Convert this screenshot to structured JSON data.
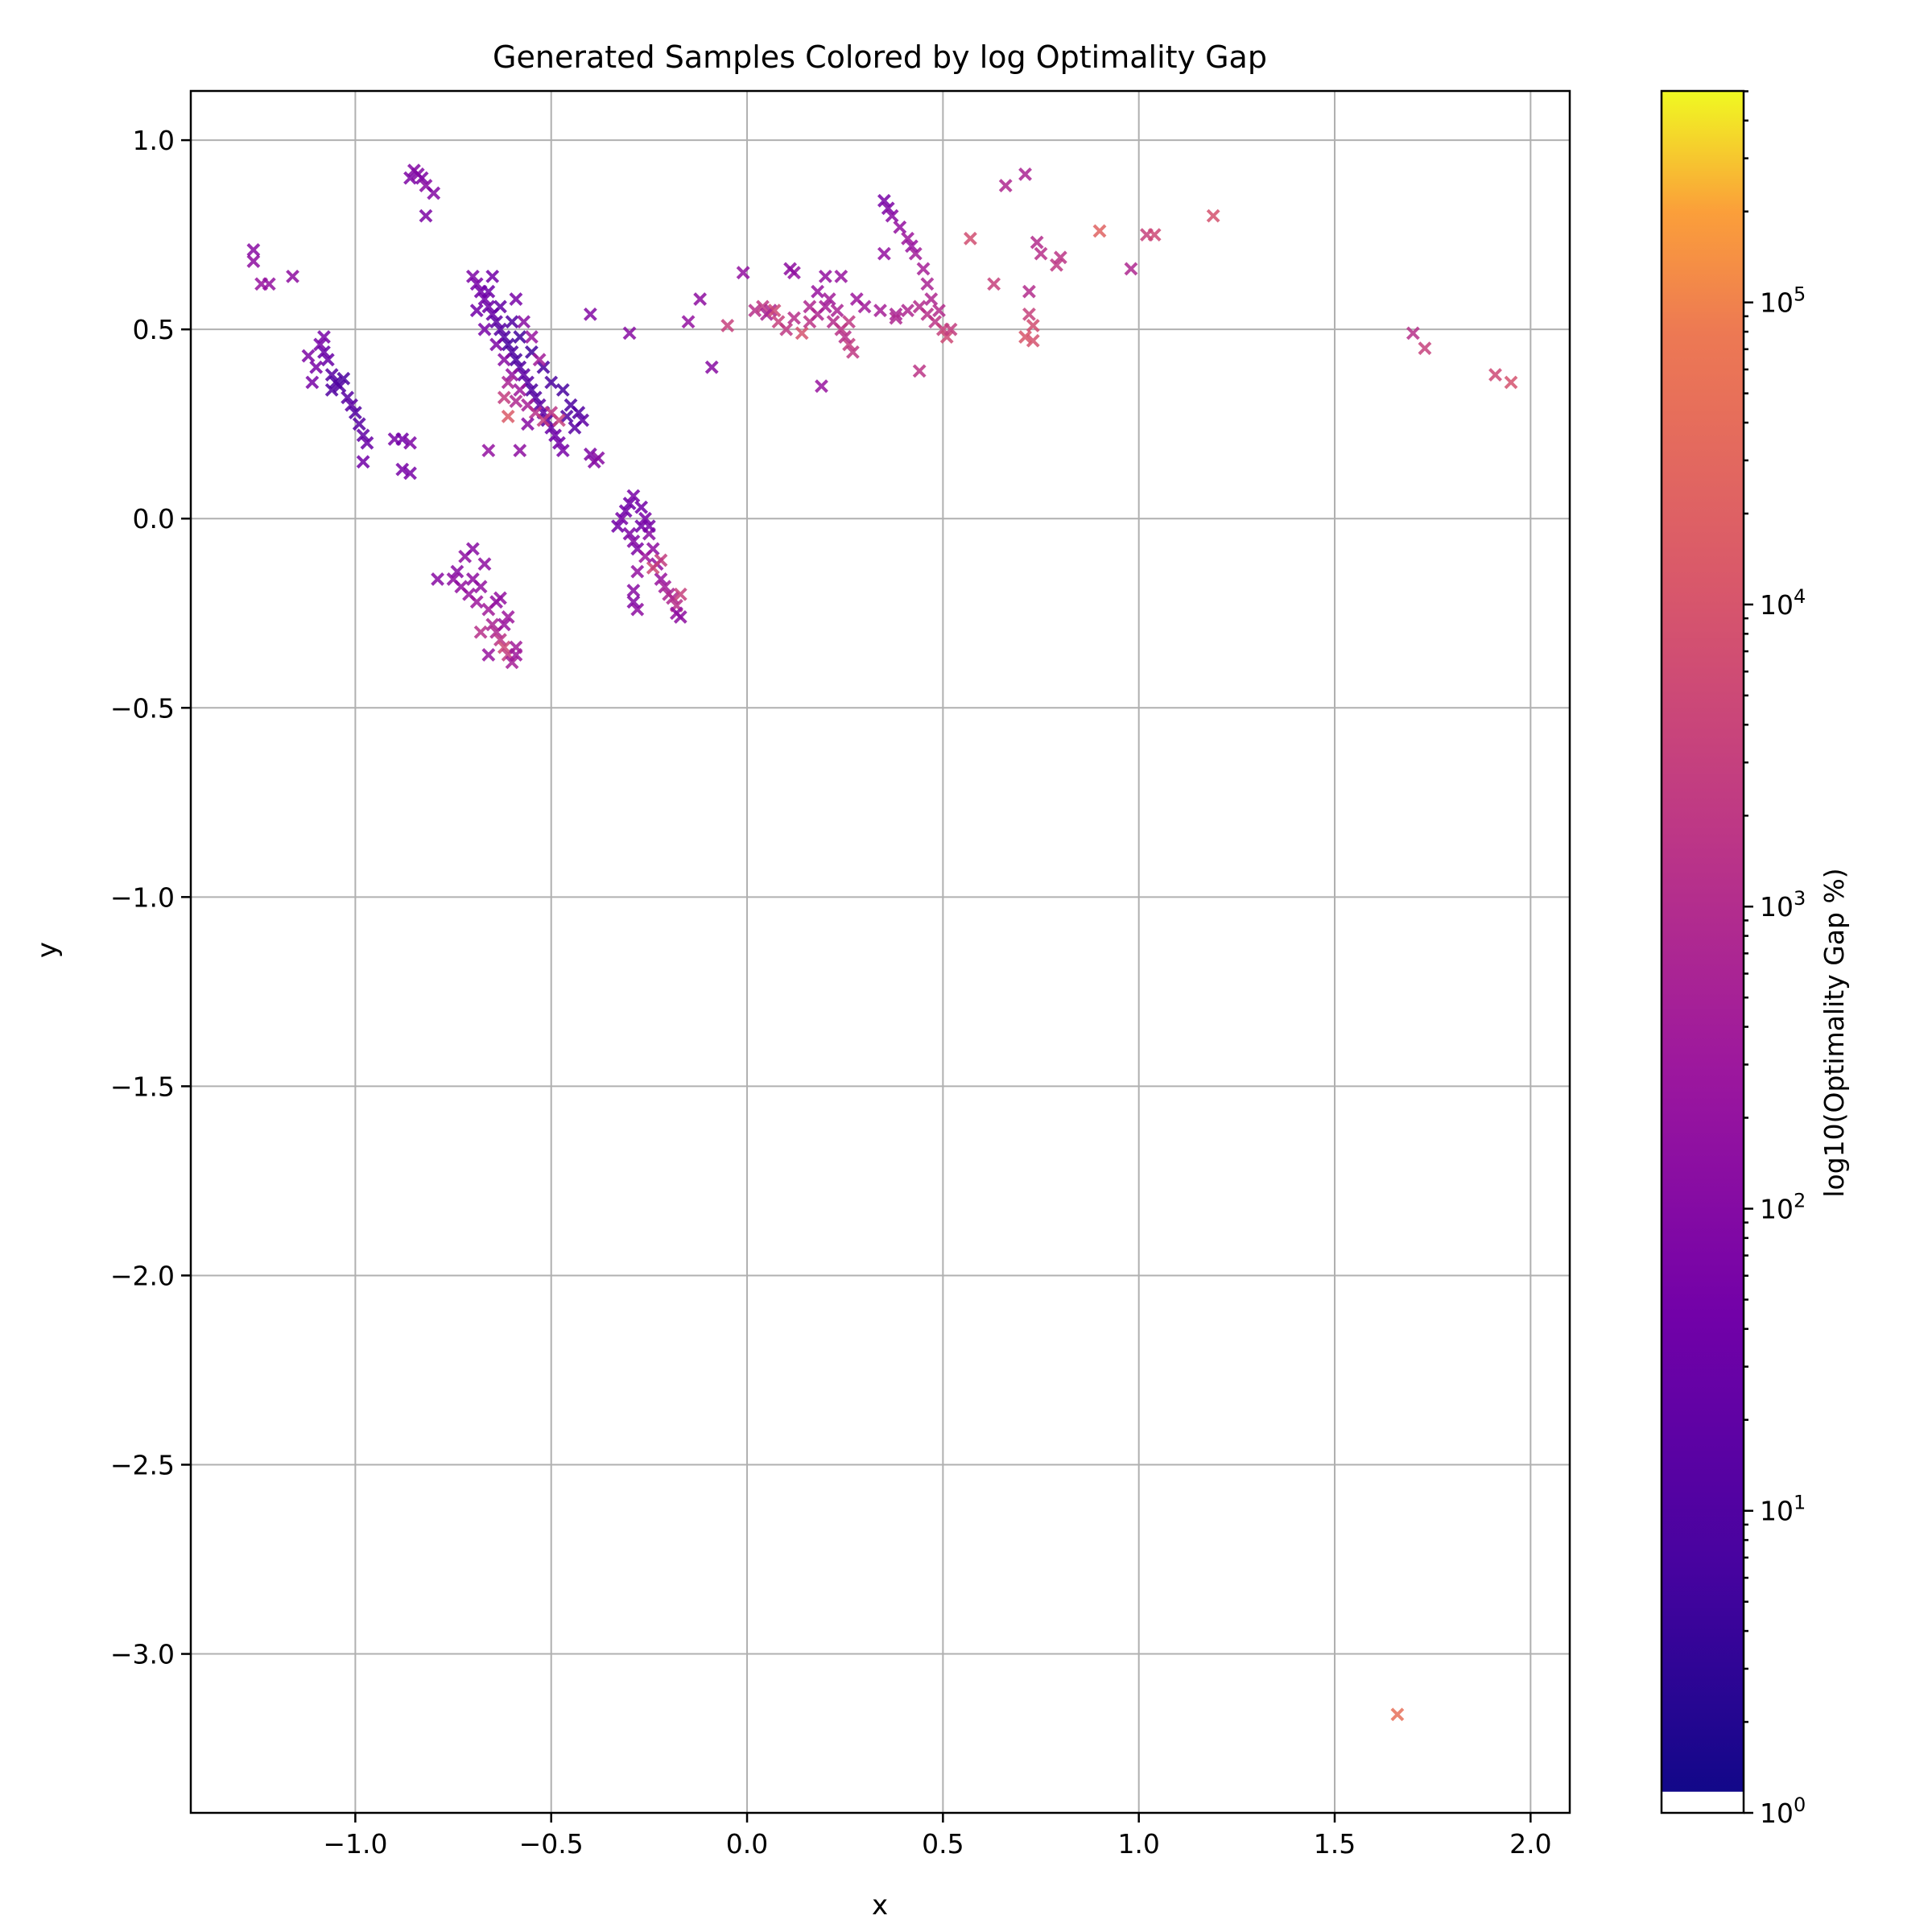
{
  "chart_data": {
    "type": "scatter",
    "title": "Generated Samples Colored by log Optimality Gap",
    "xlabel": "x",
    "ylabel": "y",
    "xlim": [
      -1.42,
      2.1
    ],
    "ylim": [
      -3.42,
      1.13
    ],
    "x_ticks": [
      -1.0,
      -0.5,
      0.0,
      0.5,
      1.0,
      1.5,
      2.0
    ],
    "y_ticks": [
      1.0,
      0.5,
      0.0,
      -0.5,
      -1.0,
      -1.5,
      -2.0,
      -2.5,
      -3.0
    ],
    "x_tick_labels": [
      "−1.0",
      "−0.5",
      "0.0",
      "0.5",
      "1.0",
      "1.5",
      "2.0"
    ],
    "y_tick_labels": [
      "1.0",
      "0.5",
      "0.0",
      "−0.5",
      "−1.0",
      "−1.5",
      "−2.0",
      "−2.5",
      "−3.0"
    ],
    "grid": true,
    "marker": "x",
    "colormap": "plasma",
    "colorbar": {
      "label": "log10(Optimality Gap %)",
      "scale": "log",
      "range_log10": [
        0,
        5.7
      ],
      "ticks": [
        {
          "exp": 0,
          "label": "10",
          "sup": "0"
        },
        {
          "exp": 1,
          "label": "10",
          "sup": "1"
        },
        {
          "exp": 2,
          "label": "10",
          "sup": "2"
        },
        {
          "exp": 3,
          "label": "10",
          "sup": "3"
        },
        {
          "exp": 4,
          "label": "10",
          "sup": "4"
        },
        {
          "exp": 5,
          "label": "10",
          "sup": "5"
        }
      ]
    },
    "points": [
      [
        -0.85,
        0.92,
        2.1
      ],
      [
        -0.83,
        0.9,
        2.0
      ],
      [
        -0.82,
        0.88,
        2.2
      ],
      [
        -0.8,
        0.86,
        2.1
      ],
      [
        -0.86,
        0.9,
        2.0
      ],
      [
        -0.82,
        0.8,
        2.0
      ],
      [
        -0.84,
        0.91,
        2.1
      ],
      [
        -1.26,
        0.71,
        2.2
      ],
      [
        -1.26,
        0.68,
        2.3
      ],
      [
        -1.24,
        0.62,
        2.5
      ],
      [
        -1.22,
        0.62,
        2.4
      ],
      [
        -1.16,
        0.64,
        2.3
      ],
      [
        -1.12,
        0.43,
        2.0
      ],
      [
        -1.1,
        0.4,
        1.9
      ],
      [
        -1.09,
        0.46,
        1.9
      ],
      [
        -1.08,
        0.44,
        1.6
      ],
      [
        -1.07,
        0.42,
        1.6
      ],
      [
        -1.06,
        0.38,
        1.3
      ],
      [
        -1.05,
        0.36,
        1.1
      ],
      [
        -1.04,
        0.35,
        1.2
      ],
      [
        -1.03,
        0.37,
        1.1
      ],
      [
        -1.02,
        0.32,
        1.3
      ],
      [
        -1.01,
        0.3,
        1.4
      ],
      [
        -1.0,
        0.28,
        1.2
      ],
      [
        -0.99,
        0.25,
        1.3
      ],
      [
        -0.98,
        0.22,
        1.5
      ],
      [
        -0.97,
        0.2,
        1.6
      ],
      [
        -0.98,
        0.15,
        1.8
      ],
      [
        -1.11,
        0.36,
        1.9
      ],
      [
        -1.08,
        0.48,
        1.9
      ],
      [
        -1.06,
        0.34,
        1.2
      ],
      [
        -0.9,
        0.21,
        1.9
      ],
      [
        -0.88,
        0.21,
        1.8
      ],
      [
        -0.86,
        0.2,
        2.0
      ],
      [
        -0.88,
        0.13,
        1.9
      ],
      [
        -0.86,
        0.12,
        1.9
      ],
      [
        -0.7,
        0.64,
        2.0
      ],
      [
        -0.69,
        0.62,
        1.9
      ],
      [
        -0.68,
        0.6,
        1.8
      ],
      [
        -0.67,
        0.58,
        1.8
      ],
      [
        -0.66,
        0.56,
        1.7
      ],
      [
        -0.65,
        0.54,
        1.6
      ],
      [
        -0.64,
        0.52,
        1.4
      ],
      [
        -0.63,
        0.5,
        1.3
      ],
      [
        -0.62,
        0.48,
        1.2
      ],
      [
        -0.61,
        0.46,
        1.0
      ],
      [
        -0.6,
        0.44,
        1.1
      ],
      [
        -0.59,
        0.42,
        1.0
      ],
      [
        -0.58,
        0.4,
        1.2
      ],
      [
        -0.57,
        0.38,
        1.4
      ],
      [
        -0.56,
        0.36,
        1.3
      ],
      [
        -0.55,
        0.34,
        1.1
      ],
      [
        -0.54,
        0.32,
        1.2
      ],
      [
        -0.53,
        0.3,
        1.4
      ],
      [
        -0.52,
        0.28,
        1.5
      ],
      [
        -0.51,
        0.26,
        1.3
      ],
      [
        -0.5,
        0.24,
        1.6
      ],
      [
        -0.49,
        0.22,
        1.7
      ],
      [
        -0.48,
        0.2,
        1.8
      ],
      [
        -0.47,
        0.18,
        1.9
      ],
      [
        -0.46,
        0.27,
        1.2
      ],
      [
        -0.45,
        0.3,
        1.1
      ],
      [
        -0.47,
        0.34,
        1.0
      ],
      [
        -0.5,
        0.36,
        1.1
      ],
      [
        -0.52,
        0.4,
        1.0
      ],
      [
        -0.55,
        0.44,
        0.9
      ],
      [
        -0.58,
        0.48,
        0.9
      ],
      [
        -0.6,
        0.52,
        1.2
      ],
      [
        -0.63,
        0.56,
        1.5
      ],
      [
        -0.66,
        0.6,
        1.7
      ],
      [
        -0.69,
        0.55,
        1.8
      ],
      [
        -0.67,
        0.5,
        1.9
      ],
      [
        -0.64,
        0.46,
        2.0
      ],
      [
        -0.62,
        0.42,
        2.2
      ],
      [
        -0.6,
        0.38,
        2.4
      ],
      [
        -0.58,
        0.34,
        2.6
      ],
      [
        -0.56,
        0.3,
        2.8
      ],
      [
        -0.54,
        0.28,
        3.2
      ],
      [
        -0.52,
        0.26,
        3.5
      ],
      [
        -0.5,
        0.28,
        3.3
      ],
      [
        -0.48,
        0.26,
        3.6
      ],
      [
        -0.61,
        0.27,
        4.2
      ],
      [
        -0.62,
        0.32,
        3.5
      ],
      [
        -0.66,
        0.18,
        2.4
      ],
      [
        -0.58,
        0.18,
        2.3
      ],
      [
        -0.56,
        0.25,
        2.2
      ],
      [
        -0.44,
        0.24,
        1.3
      ],
      [
        -0.43,
        0.28,
        1.2
      ],
      [
        -0.42,
        0.26,
        1.4
      ],
      [
        -0.4,
        0.17,
        2.0
      ],
      [
        -0.39,
        0.15,
        2.1
      ],
      [
        -0.38,
        0.16,
        2.2
      ],
      [
        -0.53,
        0.42,
        2.7
      ],
      [
        -0.55,
        0.48,
        2.5
      ],
      [
        -0.57,
        0.52,
        2.2
      ],
      [
        -0.59,
        0.58,
        1.9
      ],
      [
        -0.65,
        0.64,
        1.8
      ],
      [
        -0.61,
        0.36,
        2.9
      ],
      [
        -0.59,
        0.31,
        3.0
      ],
      [
        -0.4,
        0.54,
        2.1
      ],
      [
        -0.3,
        0.49,
        2.2
      ],
      [
        -0.15,
        0.52,
        2.4
      ],
      [
        -0.12,
        0.58,
        2.3
      ],
      [
        -0.09,
        0.4,
        2.2
      ],
      [
        -0.05,
        0.51,
        3.6
      ],
      [
        -0.01,
        0.65,
        2.4
      ],
      [
        0.19,
        0.35,
        2.5
      ],
      [
        -0.33,
        -0.02,
        1.8
      ],
      [
        -0.32,
        0.0,
        1.9
      ],
      [
        -0.31,
        0.02,
        1.8
      ],
      [
        -0.3,
        0.04,
        1.7
      ],
      [
        -0.29,
        0.06,
        1.9
      ],
      [
        -0.3,
        -0.04,
        2.0
      ],
      [
        -0.29,
        -0.06,
        2.1
      ],
      [
        -0.28,
        -0.08,
        2.0
      ],
      [
        -0.27,
        -0.02,
        1.8
      ],
      [
        -0.26,
        0.0,
        1.9
      ],
      [
        -0.25,
        -0.04,
        2.2
      ],
      [
        -0.24,
        -0.08,
        2.3
      ],
      [
        -0.23,
        -0.12,
        2.4
      ],
      [
        -0.22,
        -0.16,
        2.5
      ],
      [
        -0.21,
        -0.18,
        2.7
      ],
      [
        -0.2,
        -0.2,
        2.9
      ],
      [
        -0.19,
        -0.21,
        3.0
      ],
      [
        -0.18,
        -0.23,
        3.2
      ],
      [
        -0.17,
        -0.2,
        3.6
      ],
      [
        -0.18,
        -0.25,
        2.4
      ],
      [
        -0.17,
        -0.26,
        2.3
      ],
      [
        -0.24,
        -0.13,
        3.8
      ],
      [
        -0.22,
        -0.11,
        3.5
      ],
      [
        -0.26,
        -0.1,
        2.6
      ],
      [
        -0.28,
        -0.14,
        2.4
      ],
      [
        -0.29,
        -0.19,
        2.2
      ],
      [
        -0.28,
        -0.24,
        2.3
      ],
      [
        -0.29,
        -0.22,
        2.1
      ],
      [
        -0.25,
        -0.02,
        1.9
      ],
      [
        -0.27,
        0.03,
        1.8
      ],
      [
        -0.74,
        -0.14,
        2.2
      ],
      [
        -0.72,
        -0.1,
        2.3
      ],
      [
        -0.7,
        -0.08,
        2.2
      ],
      [
        -0.73,
        -0.18,
        2.4
      ],
      [
        -0.75,
        -0.16,
        2.3
      ],
      [
        -0.71,
        -0.2,
        2.5
      ],
      [
        -0.69,
        -0.22,
        2.6
      ],
      [
        -0.68,
        -0.18,
        2.4
      ],
      [
        -0.67,
        -0.12,
        2.3
      ],
      [
        -0.66,
        -0.24,
        2.7
      ],
      [
        -0.65,
        -0.28,
        2.9
      ],
      [
        -0.64,
        -0.3,
        3.0
      ],
      [
        -0.63,
        -0.32,
        3.3
      ],
      [
        -0.62,
        -0.34,
        3.8
      ],
      [
        -0.61,
        -0.36,
        3.5
      ],
      [
        -0.6,
        -0.38,
        2.8
      ],
      [
        -0.59,
        -0.36,
        2.6
      ],
      [
        -0.62,
        -0.28,
        2.5
      ],
      [
        -0.64,
        -0.22,
        2.4
      ],
      [
        -0.7,
        -0.16,
        2.3
      ],
      [
        -0.66,
        -0.36,
        2.5
      ],
      [
        -0.63,
        -0.21,
        2.4
      ],
      [
        -0.79,
        -0.16,
        2.2
      ],
      [
        -0.68,
        -0.3,
        3.2
      ],
      [
        -0.61,
        -0.26,
        2.6
      ],
      [
        -0.59,
        -0.34,
        2.7
      ],
      [
        0.02,
        0.55,
        3.2
      ],
      [
        0.04,
        0.56,
        3.4
      ],
      [
        0.06,
        0.55,
        3.0
      ],
      [
        0.08,
        0.52,
        3.6
      ],
      [
        0.1,
        0.5,
        3.4
      ],
      [
        0.12,
        0.53,
        3.2
      ],
      [
        0.14,
        0.49,
        4.0
      ],
      [
        0.16,
        0.52,
        3.3
      ],
      [
        0.18,
        0.54,
        3.0
      ],
      [
        0.2,
        0.56,
        2.8
      ],
      [
        0.22,
        0.52,
        3.1
      ],
      [
        0.24,
        0.5,
        3.3
      ],
      [
        0.26,
        0.46,
        3.5
      ],
      [
        0.27,
        0.44,
        3.4
      ],
      [
        0.25,
        0.48,
        3.2
      ],
      [
        0.23,
        0.55,
        2.9
      ],
      [
        0.21,
        0.58,
        2.7
      ],
      [
        0.18,
        0.6,
        2.5
      ],
      [
        0.12,
        0.65,
        2.4
      ],
      [
        0.11,
        0.66,
        2.3
      ],
      [
        0.2,
        0.64,
        2.4
      ],
      [
        0.24,
        0.64,
        2.5
      ],
      [
        0.28,
        0.58,
        2.6
      ],
      [
        0.3,
        0.56,
        2.7
      ],
      [
        0.34,
        0.55,
        2.8
      ],
      [
        0.38,
        0.54,
        2.9
      ],
      [
        0.41,
        0.55,
        3.0
      ],
      [
        0.44,
        0.56,
        3.1
      ],
      [
        0.46,
        0.54,
        3.2
      ],
      [
        0.48,
        0.52,
        3.3
      ],
      [
        0.5,
        0.5,
        3.6
      ],
      [
        0.51,
        0.48,
        3.8
      ],
      [
        0.52,
        0.5,
        3.5
      ],
      [
        0.05,
        0.54,
        2.9
      ],
      [
        0.07,
        0.55,
        3.8
      ],
      [
        0.16,
        0.56,
        3.0
      ],
      [
        0.26,
        0.52,
        3.4
      ],
      [
        0.35,
        0.84,
        1.9
      ],
      [
        0.36,
        0.82,
        2.0
      ],
      [
        0.37,
        0.8,
        2.2
      ],
      [
        0.39,
        0.77,
        2.4
      ],
      [
        0.41,
        0.74,
        2.6
      ],
      [
        0.43,
        0.7,
        2.7
      ],
      [
        0.45,
        0.66,
        2.8
      ],
      [
        0.46,
        0.62,
        2.9
      ],
      [
        0.47,
        0.58,
        3.0
      ],
      [
        0.49,
        0.55,
        3.1
      ],
      [
        0.44,
        0.39,
        3.3
      ],
      [
        0.42,
        0.72,
        2.5
      ],
      [
        0.35,
        0.7,
        2.4
      ],
      [
        0.38,
        0.53,
        3.0
      ],
      [
        0.57,
        0.74,
        3.9
      ],
      [
        0.63,
        0.62,
        3.6
      ],
      [
        0.66,
        0.88,
        3.0
      ],
      [
        0.71,
        0.91,
        2.9
      ],
      [
        0.72,
        0.6,
        3.1
      ],
      [
        0.72,
        0.54,
        3.6
      ],
      [
        0.73,
        0.51,
        3.9
      ],
      [
        0.74,
        0.73,
        3.1
      ],
      [
        0.75,
        0.7,
        3.2
      ],
      [
        0.73,
        0.47,
        4.0
      ],
      [
        0.71,
        0.48,
        4.1
      ],
      [
        0.79,
        0.67,
        3.4
      ],
      [
        0.8,
        0.69,
        3.3
      ],
      [
        0.9,
        0.76,
        4.4
      ],
      [
        0.98,
        0.66,
        3.0
      ],
      [
        1.02,
        0.75,
        3.6
      ],
      [
        1.04,
        0.75,
        3.8
      ],
      [
        1.19,
        0.8,
        4.0
      ],
      [
        1.7,
        0.49,
        3.2
      ],
      [
        1.73,
        0.45,
        3.6
      ],
      [
        1.91,
        0.38,
        3.8
      ],
      [
        1.95,
        0.36,
        4.0
      ],
      [
        1.66,
        -3.16,
        4.7
      ]
    ]
  }
}
